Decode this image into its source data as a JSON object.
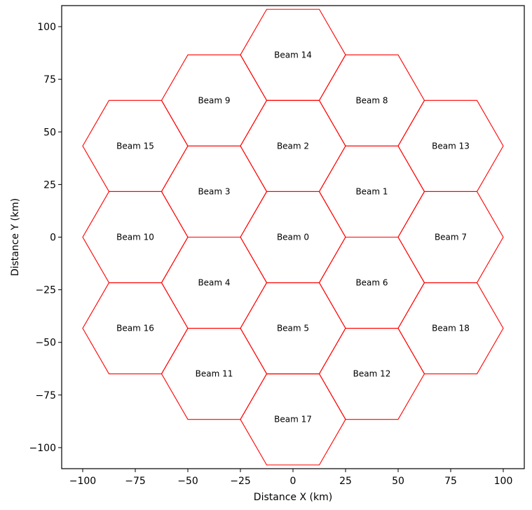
{
  "chart_data": {
    "type": "diagram-hexgrid",
    "xlabel": "Distance X (km)",
    "ylabel": "Distance Y (km)",
    "xlim": [
      -110,
      110
    ],
    "ylim": [
      -110,
      110
    ],
    "xticks": [
      -100,
      -75,
      -50,
      -25,
      0,
      25,
      50,
      75,
      100
    ],
    "yticks": [
      -100,
      -75,
      -50,
      -25,
      0,
      25,
      50,
      75,
      100
    ],
    "xtick_labels": [
      "−100",
      "−75",
      "−50",
      "−25",
      "0",
      "25",
      "50",
      "75",
      "100"
    ],
    "ytick_labels": [
      "−100",
      "−75",
      "−50",
      "−25",
      "0",
      "25",
      "50",
      "75",
      "100"
    ],
    "hex_radius_km": 25,
    "hex_color": "#ff0000",
    "grid": false,
    "beams": [
      {
        "label": "Beam 0",
        "x": 0,
        "y": 0
      },
      {
        "label": "Beam 1",
        "x": 37.5,
        "y": 21.65
      },
      {
        "label": "Beam 2",
        "x": 0,
        "y": 43.3
      },
      {
        "label": "Beam 3",
        "x": -37.5,
        "y": 21.65
      },
      {
        "label": "Beam 4",
        "x": -37.5,
        "y": -21.65
      },
      {
        "label": "Beam 5",
        "x": 0,
        "y": -43.3
      },
      {
        "label": "Beam 6",
        "x": 37.5,
        "y": -21.65
      },
      {
        "label": "Beam 7",
        "x": 75,
        "y": 0
      },
      {
        "label": "Beam 8",
        "x": 37.5,
        "y": 64.95
      },
      {
        "label": "Beam 9",
        "x": -37.5,
        "y": 64.95
      },
      {
        "label": "Beam 10",
        "x": -75,
        "y": 0
      },
      {
        "label": "Beam 11",
        "x": -37.5,
        "y": -64.95
      },
      {
        "label": "Beam 12",
        "x": 37.5,
        "y": -64.95
      },
      {
        "label": "Beam 13",
        "x": 75,
        "y": 43.3
      },
      {
        "label": "Beam 14",
        "x": 0,
        "y": 86.6
      },
      {
        "label": "Beam 15",
        "x": -75,
        "y": 43.3
      },
      {
        "label": "Beam 16",
        "x": -75,
        "y": -43.3
      },
      {
        "label": "Beam 17",
        "x": 0,
        "y": -86.6
      },
      {
        "label": "Beam 18",
        "x": 75,
        "y": -43.3
      }
    ]
  }
}
